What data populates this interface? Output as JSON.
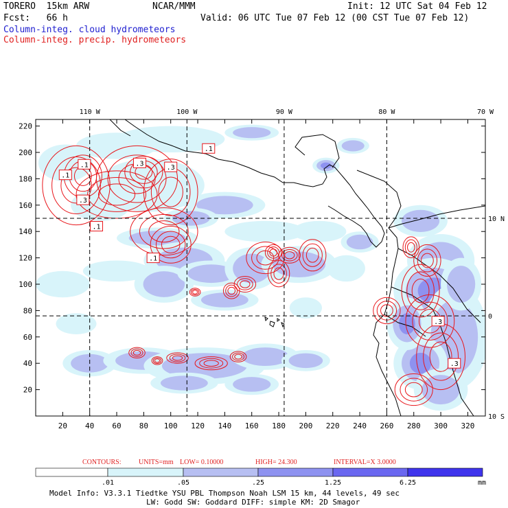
{
  "header": {
    "model": "TORERO  15km ARW",
    "org": "NCAR/MMM",
    "init": "Init: 12 UTC Sat 04 Feb 12",
    "fcst": "Fcst:   66 h",
    "valid": "Valid: 06 UTC Tue 07 Feb 12 (00 CST Tue 07 Feb 12)",
    "cloud_label": "Column-integ. cloud hydrometeors",
    "precip_label": "Column-integ. precip. hydrometeors"
  },
  "colors": {
    "cloud_label": "#2020d0",
    "precip_label": "#e02020",
    "contour": "#e8161b",
    "coast": "#000000",
    "shade1": "#d8f4fa",
    "shade2": "#b7bff2",
    "shade3": "#8e92f0",
    "shade4": "#6a67f0",
    "shade5": "#3f34ec"
  },
  "chart_data": {
    "type": "heatmap",
    "x_ticks": [
      "20",
      "40",
      "60",
      "80",
      "100",
      "120",
      "140",
      "160",
      "180",
      "200",
      "220",
      "240",
      "260",
      "280",
      "300",
      "320"
    ],
    "y_ticks": [
      "20",
      "40",
      "60",
      "80",
      "100",
      "120",
      "140",
      "160",
      "180",
      "200",
      "220"
    ],
    "xlim": [
      0,
      333
    ],
    "ylim": [
      0,
      225
    ],
    "lon_labels": [
      {
        "label": "110 W",
        "x": 40
      },
      {
        "label": "100 W",
        "x": 112
      },
      {
        "label": "90 W",
        "x": 184
      },
      {
        "label": "80 W",
        "x": 260
      },
      {
        "label": "70 W",
        "x": 333
      }
    ],
    "lat_labels": [
      {
        "label": "10 N",
        "y": 150
      },
      {
        "label": "0",
        "y": 76
      },
      {
        "label": "10 S",
        "y": 0
      }
    ],
    "grid_lon": [
      40,
      112,
      184,
      260
    ],
    "grid_lat": [
      150,
      76
    ],
    "contour_labels": [
      {
        "text": ".1",
        "x": 22,
        "y": 183
      },
      {
        "text": ".1",
        "x": 36,
        "y": 191
      },
      {
        "text": ".3",
        "x": 77,
        "y": 192
      },
      {
        "text": ".3",
        "x": 100,
        "y": 189
      },
      {
        "text": ".1",
        "x": 128,
        "y": 203
      },
      {
        "text": ".3",
        "x": 35,
        "y": 164
      },
      {
        "text": ".1",
        "x": 45,
        "y": 144
      },
      {
        "text": ".1",
        "x": 87,
        "y": 120
      },
      {
        "text": ".3",
        "x": 298,
        "y": 72
      },
      {
        "text": ".3",
        "x": 310,
        "y": 40
      }
    ],
    "contours_info": {
      "prefix": "CONTOURS:",
      "units": "UNITS=mm",
      "low": "LOW= 0.10000",
      "high": "HIGH=  24.300",
      "interval": "INTERVAL=X  3.0000"
    },
    "colorbar": {
      "levels": [
        ".01",
        ".05",
        ".25",
        "1.25",
        "6.25"
      ],
      "unit": "mm"
    },
    "cloud_cells": [
      [
        22,
        192,
        20,
        14,
        1
      ],
      [
        60,
        205,
        30,
        10,
        1
      ],
      [
        100,
        210,
        40,
        10,
        1
      ],
      [
        160,
        215,
        20,
        6,
        2
      ],
      [
        235,
        205,
        12,
        6,
        2
      ],
      [
        215,
        190,
        10,
        6,
        3
      ],
      [
        48,
        160,
        22,
        12,
        1
      ],
      [
        85,
        175,
        40,
        20,
        1
      ],
      [
        140,
        160,
        30,
        10,
        2
      ],
      [
        115,
        150,
        20,
        8,
        2
      ],
      [
        90,
        135,
        30,
        8,
        2
      ],
      [
        110,
        118,
        30,
        14,
        2
      ],
      [
        170,
        140,
        30,
        8,
        1
      ],
      [
        210,
        140,
        20,
        8,
        1
      ],
      [
        240,
        132,
        14,
        8,
        2
      ],
      [
        20,
        100,
        20,
        10,
        1
      ],
      [
        60,
        110,
        25,
        8,
        1
      ],
      [
        95,
        100,
        22,
        14,
        2
      ],
      [
        130,
        108,
        25,
        10,
        2
      ],
      [
        160,
        112,
        20,
        16,
        2
      ],
      [
        195,
        115,
        28,
        14,
        2
      ],
      [
        230,
        112,
        14,
        10,
        1
      ],
      [
        140,
        88,
        25,
        8,
        2
      ],
      [
        30,
        70,
        15,
        8,
        1
      ],
      [
        200,
        82,
        12,
        8,
        1
      ],
      [
        40,
        40,
        20,
        10,
        2
      ],
      [
        80,
        42,
        30,
        10,
        2
      ],
      [
        125,
        38,
        45,
        14,
        2
      ],
      [
        170,
        45,
        25,
        10,
        2
      ],
      [
        200,
        42,
        18,
        8,
        2
      ],
      [
        110,
        25,
        25,
        8,
        2
      ],
      [
        160,
        24,
        20,
        8,
        2
      ],
      [
        300,
        118,
        25,
        20,
        2
      ],
      [
        295,
        95,
        30,
        25,
        3
      ],
      [
        310,
        60,
        25,
        40,
        2
      ],
      [
        285,
        40,
        20,
        20,
        3
      ],
      [
        275,
        70,
        15,
        20,
        3
      ],
      [
        300,
        20,
        20,
        16,
        2
      ],
      [
        315,
        100,
        15,
        20,
        2
      ],
      [
        285,
        148,
        20,
        12,
        2
      ]
    ],
    "contour_cells": [
      [
        30,
        175,
        25,
        30
      ],
      [
        35,
        182,
        14,
        16
      ],
      [
        75,
        180,
        30,
        25
      ],
      [
        80,
        185,
        14,
        12
      ],
      [
        100,
        170,
        20,
        25
      ],
      [
        60,
        168,
        30,
        18
      ],
      [
        95,
        140,
        25,
        18
      ],
      [
        100,
        130,
        15,
        14
      ],
      [
        170,
        120,
        14,
        12
      ],
      [
        176,
        124,
        6,
        6
      ],
      [
        188,
        122,
        8,
        6
      ],
      [
        205,
        122,
        10,
        12
      ],
      [
        155,
        100,
        8,
        6
      ],
      [
        180,
        108,
        8,
        10
      ],
      [
        145,
        95,
        6,
        6
      ],
      [
        118,
        94,
        4,
        3
      ],
      [
        75,
        48,
        6,
        4
      ],
      [
        105,
        44,
        8,
        4
      ],
      [
        130,
        40,
        12,
        5
      ],
      [
        150,
        45,
        6,
        4
      ],
      [
        90,
        42,
        4,
        3
      ],
      [
        290,
        118,
        10,
        12
      ],
      [
        285,
        95,
        14,
        20
      ],
      [
        292,
        72,
        18,
        20
      ],
      [
        300,
        45,
        18,
        25
      ],
      [
        280,
        20,
        14,
        12
      ],
      [
        278,
        128,
        6,
        8
      ],
      [
        260,
        80,
        10,
        10
      ]
    ]
  },
  "footer": {
    "model_info_1": "Model Info: V3.3.1    Tiedtke YSU PBL  Thompson     Noah LSM  15 km,   44 levels,   49 sec",
    "model_info_2": "LW: Godd SW: Goddard DIFF: simple KM: 2D Smagor"
  }
}
